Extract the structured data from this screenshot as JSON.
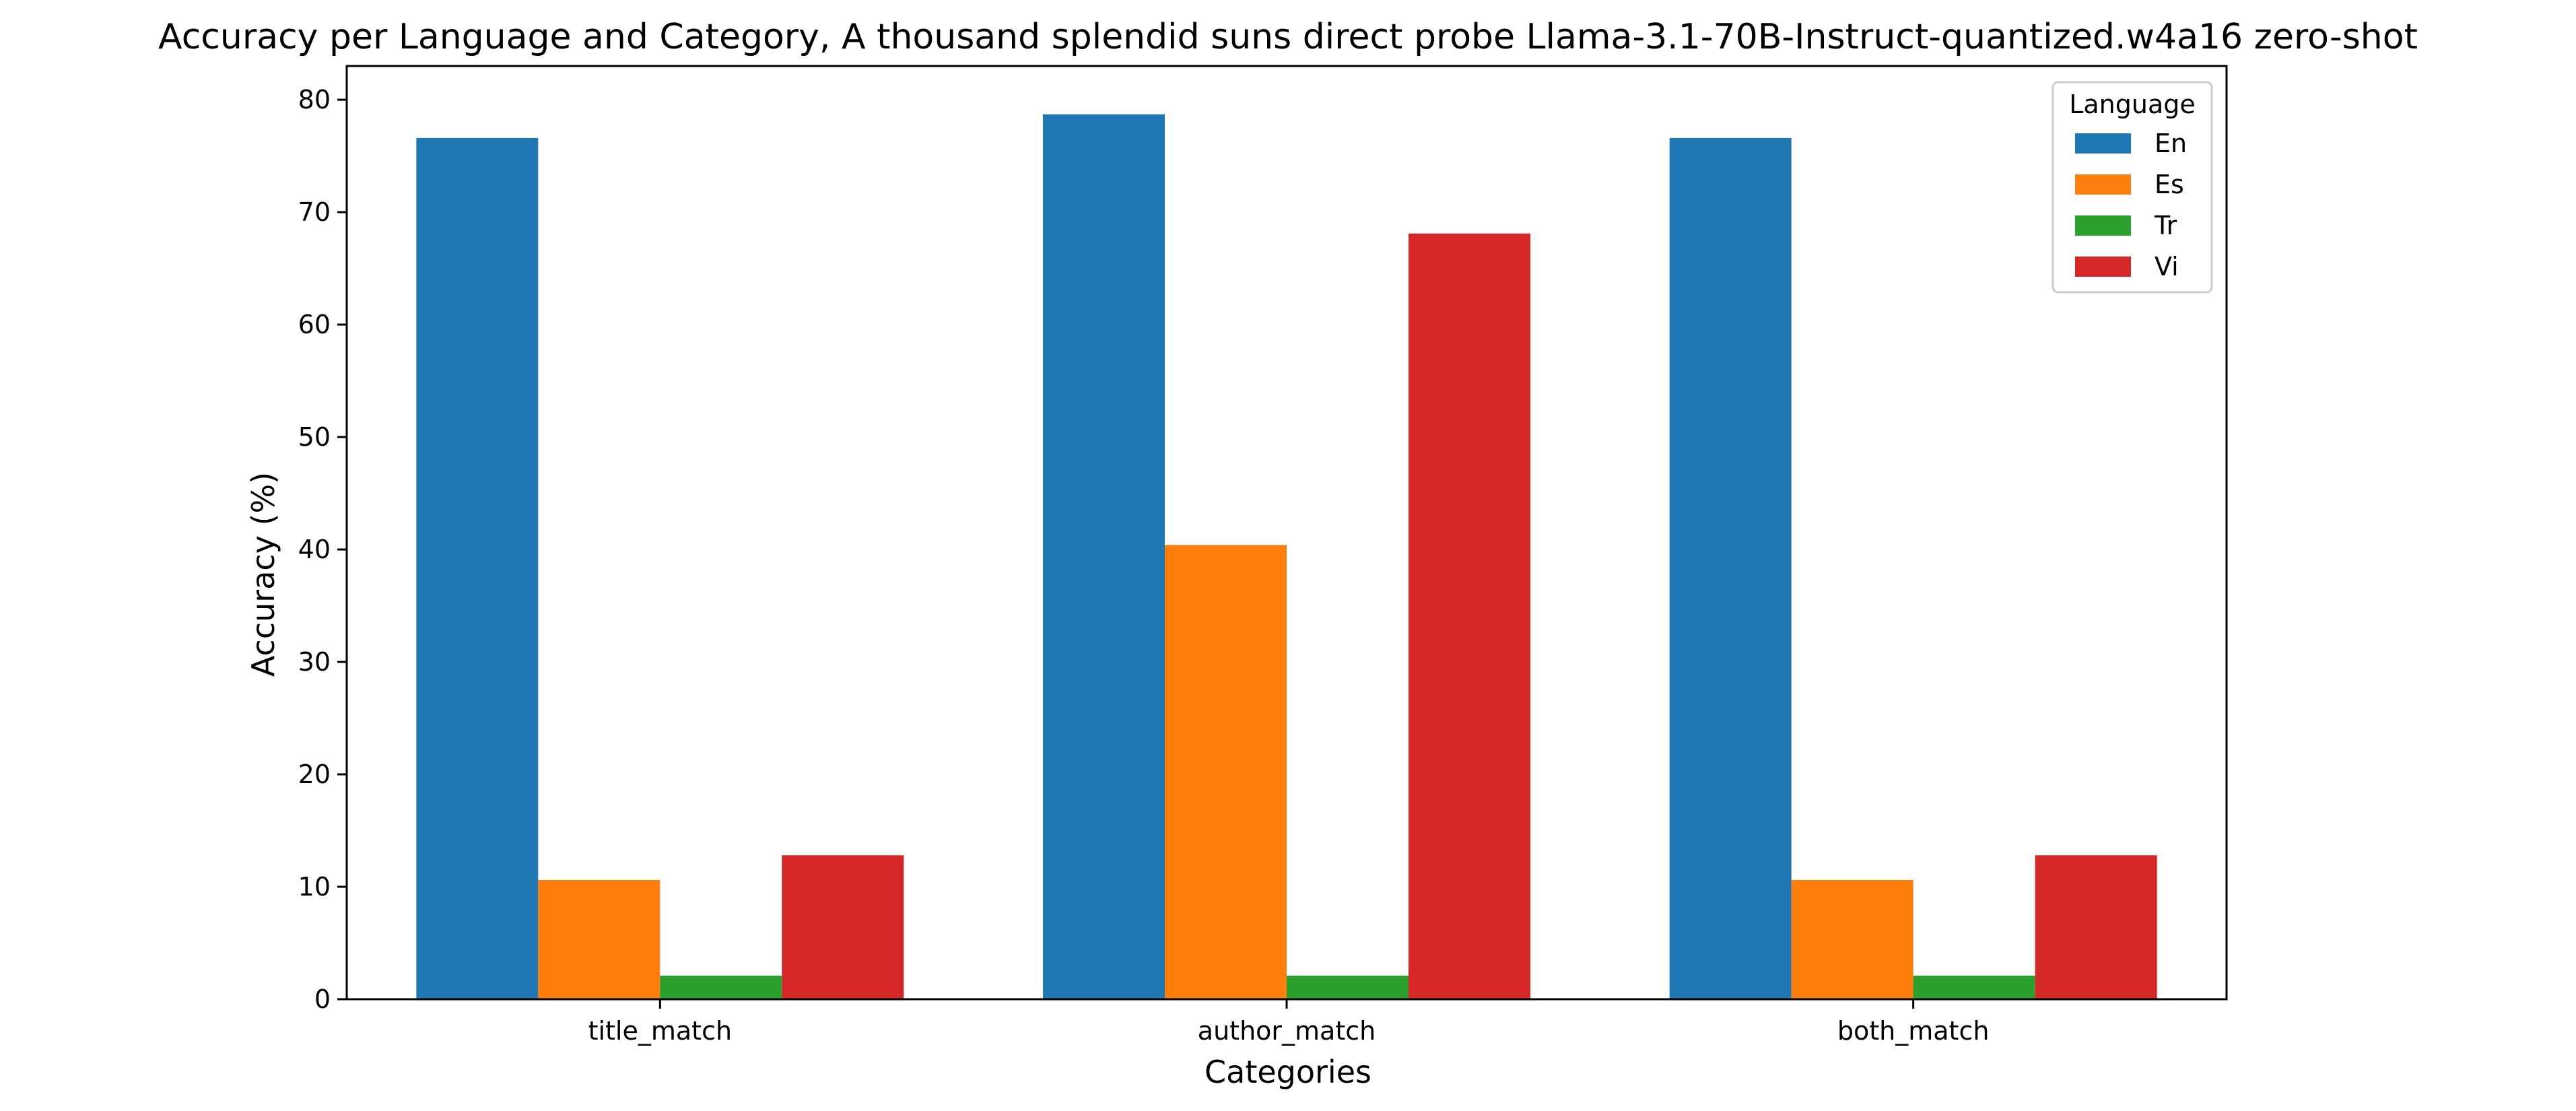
{
  "chart_data": {
    "type": "bar",
    "title": "Accuracy per Language and Category, A thousand splendid suns direct probe Llama-3.1-70B-Instruct-quantized.w4a16 zero-shot",
    "xlabel": "Categories",
    "ylabel": "Accuracy (%)",
    "categories": [
      "title_match",
      "author_match",
      "both_match"
    ],
    "ylim": [
      0,
      83
    ],
    "yticks": [
      0,
      10,
      20,
      30,
      40,
      50,
      60,
      70,
      80
    ],
    "grid": false,
    "legend": {
      "title": "Language",
      "position": "top-right"
    },
    "series": [
      {
        "name": "En",
        "color": "#1f77b4",
        "values": [
          76.6,
          78.7,
          76.6
        ]
      },
      {
        "name": "Es",
        "color": "#ff7f0e",
        "values": [
          10.6,
          40.4,
          10.6
        ]
      },
      {
        "name": "Tr",
        "color": "#2ca02c",
        "values": [
          2.1,
          2.1,
          2.1
        ]
      },
      {
        "name": "Vi",
        "color": "#d62728",
        "values": [
          12.8,
          68.1,
          12.8
        ]
      }
    ]
  }
}
